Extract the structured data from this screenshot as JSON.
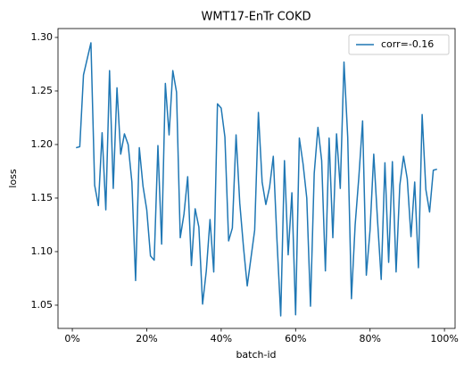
{
  "chart_data": {
    "type": "line",
    "title": "WMT17-EnTr COKD",
    "xlabel": "batch-id",
    "ylabel": "loss",
    "x": [
      1,
      2,
      3,
      4,
      5,
      6,
      7,
      8,
      9,
      10,
      11,
      12,
      13,
      14,
      15,
      16,
      17,
      18,
      19,
      20,
      21,
      22,
      23,
      24,
      25,
      26,
      27,
      28,
      29,
      30,
      31,
      32,
      33,
      34,
      35,
      36,
      37,
      38,
      39,
      40,
      41,
      42,
      43,
      44,
      45,
      46,
      47,
      48,
      49,
      50,
      51,
      52,
      53,
      54,
      55,
      56,
      57,
      58,
      59,
      60,
      61,
      62,
      63,
      64,
      65,
      66,
      67,
      68,
      69,
      70,
      71,
      72,
      73,
      74,
      75,
      76,
      77,
      78,
      79,
      80,
      81,
      82,
      83,
      84,
      85,
      86,
      87,
      88,
      89,
      90,
      91,
      92,
      93,
      94,
      95,
      96,
      97,
      98
    ],
    "series": [
      {
        "name": "corr=-0.16",
        "color": "#1f77b4",
        "values": [
          1.197,
          1.198,
          1.265,
          1.28,
          1.295,
          1.162,
          1.143,
          1.211,
          1.139,
          1.269,
          1.159,
          1.253,
          1.191,
          1.21,
          1.2,
          1.165,
          1.073,
          1.197,
          1.161,
          1.139,
          1.096,
          1.092,
          1.199,
          1.107,
          1.257,
          1.209,
          1.269,
          1.249,
          1.113,
          1.135,
          1.17,
          1.087,
          1.14,
          1.123,
          1.051,
          1.082,
          1.13,
          1.081,
          1.238,
          1.234,
          1.207,
          1.11,
          1.122,
          1.209,
          1.145,
          1.104,
          1.068,
          1.094,
          1.12,
          1.23,
          1.165,
          1.144,
          1.16,
          1.189,
          1.11,
          1.04,
          1.185,
          1.097,
          1.155,
          1.041,
          1.206,
          1.182,
          1.15,
          1.049,
          1.173,
          1.216,
          1.185,
          1.082,
          1.206,
          1.113,
          1.21,
          1.159,
          1.277,
          1.207,
          1.056,
          1.125,
          1.17,
          1.222,
          1.078,
          1.12,
          1.191,
          1.13,
          1.074,
          1.183,
          1.09,
          1.184,
          1.081,
          1.162,
          1.189,
          1.168,
          1.114,
          1.165,
          1.085,
          1.228,
          1.158,
          1.137,
          1.176,
          1.177
        ]
      }
    ],
    "xlim": [
      -3.85,
      102.85
    ],
    "xticks": [
      {
        "value": 0,
        "label": "0%"
      },
      {
        "value": 20,
        "label": "20%"
      },
      {
        "value": 40,
        "label": "40%"
      },
      {
        "value": 60,
        "label": "60%"
      },
      {
        "value": 80,
        "label": "80%"
      },
      {
        "value": 100,
        "label": "100%"
      }
    ],
    "ylim": [
      1.0283,
      1.3083
    ],
    "yticks": [
      1.05,
      {
        "value": 1.1,
        "label": "1.10"
      },
      1.15,
      {
        "value": 1.2,
        "label": "1.20"
      },
      1.25,
      {
        "value": 1.3,
        "label": "1.30"
      }
    ],
    "legend": "upper right"
  }
}
